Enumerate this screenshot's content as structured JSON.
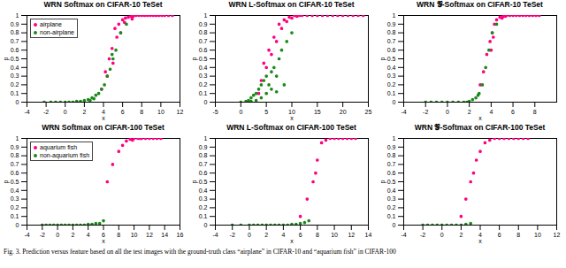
{
  "chart_data": [
    {
      "type": "scatter",
      "title": "WRN Softmax on CIFAR-10 TeSet",
      "x_label": "x",
      "y_label": "p",
      "xlim": [
        -4,
        12
      ],
      "xticks": [
        -4,
        -2,
        0,
        2,
        4,
        6,
        8,
        10,
        12
      ],
      "ylim": [
        0,
        1
      ],
      "yticks": [
        0,
        0.1,
        0.2,
        0.3,
        0.4,
        0.5,
        0.6,
        0.7,
        0.8,
        0.9,
        1
      ],
      "legend": "top-left",
      "series": [
        {
          "name": "airplane",
          "color": "#ff0080",
          "x": [
            5.2,
            5.6,
            6.0,
            6.3,
            6.6,
            6.9,
            7.1,
            7.4,
            7.7,
            8.0,
            8.3,
            8.6,
            8.9,
            9.2,
            9.5,
            9.8,
            10.1,
            10.4,
            10.8,
            11.2,
            4.2,
            4.6,
            4.9,
            5.4,
            5.8,
            3.8,
            6.2,
            5.0,
            4.4,
            7.0
          ],
          "y": [
            0.85,
            0.9,
            0.95,
            0.97,
            0.98,
            0.99,
            0.99,
            1,
            1,
            1,
            1,
            1,
            1,
            1,
            1,
            1,
            1,
            1,
            1,
            1,
            0.35,
            0.5,
            0.62,
            0.75,
            0.8,
            0.15,
            0.92,
            0.45,
            0.3,
            0.96
          ]
        },
        {
          "name": "non-airplane",
          "color": "#1a8a1a",
          "x": [
            -2.2,
            -1.5,
            -1,
            -0.5,
            0,
            0.4,
            0.8,
            1.2,
            1.6,
            2,
            2.4,
            2.8,
            3.2,
            3.5,
            3.8,
            4.1,
            4.4,
            4.7,
            5,
            5.3,
            3,
            2.6,
            4.9,
            5.8,
            6.4
          ],
          "y": [
            0,
            0,
            0,
            0,
            0,
            0,
            0,
            0.01,
            0.01,
            0.02,
            0.03,
            0.05,
            0.08,
            0.1,
            0.15,
            0.2,
            0.3,
            0.38,
            0.5,
            0.6,
            0.04,
            0.02,
            0.55,
            0.8,
            0.9
          ]
        }
      ]
    },
    {
      "type": "scatter",
      "title": "WRN L-Softmax on CIFAR-10 TeSet",
      "x_label": "x",
      "y_label": "p",
      "xlim": [
        -5,
        25
      ],
      "xticks": [
        -5,
        0,
        5,
        10,
        15,
        20,
        25
      ],
      "ylim": [
        0,
        1
      ],
      "yticks": [
        0,
        0.1,
        0.2,
        0.3,
        0.4,
        0.5,
        0.6,
        0.7,
        0.8,
        0.9,
        1
      ],
      "series": [
        {
          "name": "airplane",
          "color": "#ff0080",
          "x": [
            12,
            13,
            14,
            15,
            16,
            17,
            18,
            19,
            20,
            21,
            22,
            23,
            24,
            10,
            11,
            9,
            8,
            7,
            6,
            5,
            4,
            8.5,
            7.5,
            6.5,
            9.5,
            5.5,
            4.5,
            3.5,
            10.5,
            11.5
          ],
          "y": [
            1,
            1,
            1,
            1,
            1,
            1,
            1,
            1,
            1,
            1,
            1,
            1,
            1,
            0.97,
            0.99,
            0.93,
            0.85,
            0.7,
            0.55,
            0.4,
            0.25,
            0.95,
            0.9,
            0.75,
            0.98,
            0.6,
            0.45,
            0.1,
            1,
            1
          ]
        },
        {
          "name": "non-airplane",
          "color": "#1a8a1a",
          "x": [
            0,
            1,
            1.5,
            2,
            2.5,
            3,
            3.5,
            4,
            4.5,
            5,
            5.5,
            6,
            6.5,
            7,
            7.5,
            8,
            9,
            10,
            3,
            4,
            5,
            6,
            2,
            7,
            8.5
          ],
          "y": [
            0,
            0.01,
            0.02,
            0.05,
            0.08,
            0.1,
            0.15,
            0.2,
            0.25,
            0.3,
            0.2,
            0.35,
            0.4,
            0.3,
            0.5,
            0.6,
            0.7,
            0.8,
            0.02,
            0.05,
            0.1,
            0.15,
            0.01,
            0.12,
            0.2
          ]
        }
      ]
    },
    {
      "type": "scatter",
      "title": "WRN 𝒢-Softmax on CIFAR-10 TeSet",
      "x_label": "x",
      "y_label": "p",
      "xlim": [
        -4,
        10
      ],
      "xticks": [
        -4,
        -2,
        0,
        2,
        4,
        6,
        8
      ],
      "ylim": [
        0,
        1
      ],
      "yticks": [
        0,
        0.1,
        0.2,
        0.3,
        0.4,
        0.5,
        0.6,
        0.7,
        0.8,
        0.9,
        1
      ],
      "series": [
        {
          "name": "airplane",
          "color": "#ff0080",
          "x": [
            3,
            3.3,
            3.6,
            3.9,
            4.1,
            4.3,
            4.5,
            4.8,
            5.1,
            5.4,
            5.7,
            6,
            6.3,
            6.6,
            6.9,
            7.2,
            7.5,
            7.8,
            8.1,
            8.4,
            4.2,
            4,
            5,
            5.3
          ],
          "y": [
            0.2,
            0.35,
            0.55,
            0.7,
            0.8,
            0.9,
            0.95,
            0.98,
            0.99,
            1,
            1,
            1,
            1,
            1,
            1,
            1,
            1,
            1,
            1,
            1,
            0.75,
            0.6,
            0.97,
            0.99
          ]
        },
        {
          "name": "non-airplane",
          "color": "#1a8a1a",
          "x": [
            -2,
            -1.5,
            -1,
            -0.5,
            0,
            0.5,
            1,
            1.5,
            2,
            2.3,
            2.6,
            2.9,
            3.2,
            3.5,
            3.8,
            4.1,
            1.8,
            2.8,
            4.5
          ],
          "y": [
            0,
            0,
            0,
            0,
            0,
            0,
            0,
            0,
            0.01,
            0.03,
            0.05,
            0.1,
            0.2,
            0.4,
            0.6,
            0.8,
            0,
            0.08,
            0.9
          ]
        }
      ]
    },
    {
      "type": "scatter",
      "title": "WRN Softmax on CIFAR-100 TeSet",
      "x_label": "x",
      "y_label": "p",
      "xlim": [
        -4,
        16
      ],
      "xticks": [
        -4,
        -2,
        0,
        2,
        4,
        6,
        8,
        10,
        12,
        14,
        16
      ],
      "ylim": [
        0,
        1
      ],
      "yticks": [
        0,
        0.1,
        0.2,
        0.3,
        0.4,
        0.5,
        0.6,
        0.7,
        0.8,
        0.9,
        1
      ],
      "legend": "top-left",
      "series": [
        {
          "name": "aquarium fish",
          "color": "#ff0080",
          "x": [
            6.5,
            7.2,
            8,
            8.5,
            9,
            9.5,
            10,
            10.5,
            11,
            11.5,
            12,
            12.5,
            13,
            13.5,
            9.8,
            10.8
          ],
          "y": [
            0.5,
            0.7,
            0.85,
            0.92,
            0.97,
            0.99,
            1,
            1,
            1,
            1,
            1,
            1,
            1,
            1,
            0.98,
            1
          ]
        },
        {
          "name": "non-aquarium fish",
          "color": "#1a8a1a",
          "x": [
            -2,
            -1.5,
            -1,
            -0.5,
            0,
            0.5,
            1,
            1.5,
            2,
            2.5,
            3,
            3.5,
            4,
            4.5,
            5,
            5.5,
            6
          ],
          "y": [
            0,
            0,
            0,
            0,
            0,
            0,
            0,
            0,
            0,
            0,
            0,
            0,
            0.01,
            0.01,
            0.02,
            0.02,
            0.05
          ]
        }
      ]
    },
    {
      "type": "scatter",
      "title": "WRN L-Softmax on CIFAR-100 TeSet",
      "x_label": "x",
      "y_label": "p",
      "xlim": [
        -4,
        14
      ],
      "xticks": [
        -4,
        -2,
        0,
        2,
        4,
        6,
        8,
        10,
        12,
        14
      ],
      "ylim": [
        0,
        1
      ],
      "yticks": [
        0,
        0.1,
        0.2,
        0.3,
        0.4,
        0.5,
        0.6,
        0.7,
        0.8,
        0.9,
        1
      ],
      "series": [
        {
          "name": "aquarium fish",
          "color": "#ff0080",
          "x": [
            6,
            6.8,
            7.5,
            8,
            8.5,
            9,
            9.5,
            10,
            10.5,
            11,
            11.5,
            12,
            12.5,
            7.8
          ],
          "y": [
            0.1,
            0.3,
            0.5,
            0.75,
            0.95,
            0.98,
            1,
            1,
            1,
            1,
            1,
            1,
            1,
            0.6
          ]
        },
        {
          "name": "non-aquarium fish",
          "color": "#1a8a1a",
          "x": [
            -2,
            -1,
            0,
            0.5,
            1,
            1.5,
            2,
            2.5,
            3,
            3.5,
            4,
            4.5,
            5,
            5.5,
            6,
            6.5,
            7
          ],
          "y": [
            0,
            0,
            0,
            0,
            0,
            0,
            0,
            0,
            0,
            0,
            0,
            0,
            0.01,
            0.01,
            0.02,
            0.03,
            0.05
          ]
        }
      ]
    },
    {
      "type": "scatter",
      "title": "WRN 𝒢-Softmax on CIFAR-100 TeSet",
      "x_label": "x",
      "y_label": "p",
      "xlim": [
        -4,
        12
      ],
      "xticks": [
        -4,
        -2,
        0,
        2,
        4,
        6,
        8,
        10,
        12
      ],
      "ylim": [
        0,
        1
      ],
      "yticks": [
        0,
        0.1,
        0.2,
        0.3,
        0.4,
        0.5,
        0.6,
        0.7,
        0.8,
        0.9,
        1
      ],
      "series": [
        {
          "name": "aquarium fish",
          "color": "#ff0080",
          "x": [
            2,
            2.5,
            3,
            3.3,
            3.6,
            4,
            4.5,
            5,
            5.5,
            6,
            6.5,
            7,
            7.5,
            8,
            8.5,
            9
          ],
          "y": [
            0.1,
            0.3,
            0.5,
            0.6,
            0.75,
            0.85,
            0.95,
            0.98,
            1,
            1,
            1,
            1,
            1,
            1,
            1,
            1
          ]
        },
        {
          "name": "non-aquarium fish",
          "color": "#1a8a1a",
          "x": [
            -2,
            -1.5,
            -1,
            -0.5,
            0,
            0.5,
            1,
            1.5,
            2,
            2.5,
            3
          ],
          "y": [
            0,
            0,
            0,
            0,
            0,
            0,
            0,
            0,
            0,
            0.01,
            0.02
          ]
        }
      ]
    }
  ],
  "caption": "Fig. 3.   Prediction versus feature based on all the test images with the ground-truth class “airplane” in CIFAR-10 and “aquarium fish” in CIFAR-100"
}
